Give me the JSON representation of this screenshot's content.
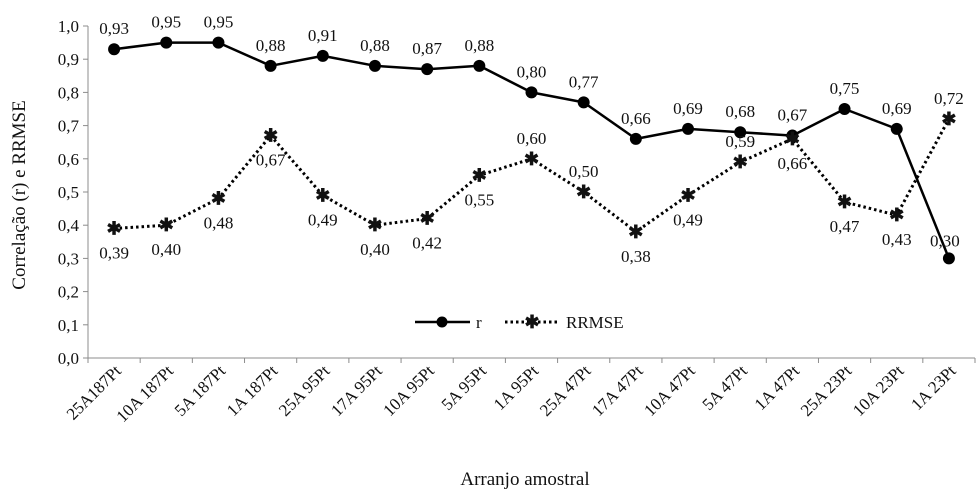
{
  "chart_data": {
    "type": "line",
    "xlabel": "Arranjo amostral",
    "ylabel": "Correlação (r) e RRMSE",
    "ylim": [
      0,
      1
    ],
    "ytick_labels": [
      "0,0",
      "0,1",
      "0,2",
      "0,3",
      "0,4",
      "0,5",
      "0,6",
      "0,7",
      "0,8",
      "0,9",
      "1,0"
    ],
    "categories": [
      "25A187Pt",
      "10A 187Pt",
      "5A 187Pt",
      "1A 187Pt",
      "25A 95Pt",
      "17A 95Pt",
      "10A 95Pt",
      "5A 95Pt",
      "1A 95Pt",
      "25A 47Pt",
      "17A 47Pt",
      "10A 47Pt",
      "5A 47Pt",
      "1A 47Pt",
      "25A 23Pt",
      "10A 23Pt",
      "1A 23Pt"
    ],
    "grid": false,
    "legend_position": "bottom-right",
    "series": [
      {
        "name": "r",
        "style": "solid",
        "marker": "circle",
        "color": "#000000",
        "values": [
          0.93,
          0.95,
          0.95,
          0.88,
          0.91,
          0.88,
          0.87,
          0.88,
          0.8,
          0.77,
          0.66,
          0.69,
          0.68,
          0.67,
          0.75,
          0.69,
          0.3
        ],
        "labels": [
          "0,93",
          "0,95",
          "0,95",
          "0,88",
          "0,91",
          "0,88",
          "0,87",
          "0,88",
          "0,80",
          "0,77",
          "0,66",
          "0,69",
          "0,68",
          "0,67",
          "0,75",
          "0,69",
          "0,30"
        ]
      },
      {
        "name": "RRMSE",
        "style": "dotted",
        "marker": "star",
        "color": "#000000",
        "values": [
          0.39,
          0.4,
          0.48,
          0.67,
          0.49,
          0.4,
          0.42,
          0.55,
          0.6,
          0.5,
          0.38,
          0.49,
          0.59,
          0.66,
          0.47,
          0.43,
          0.72
        ],
        "labels": [
          "0,39",
          "0,40",
          "0,48",
          "0,67",
          "0,49",
          "0,40",
          "0,42",
          "0,55",
          "0,60",
          "0,50",
          "0,38",
          "0,49",
          "0,59",
          "0,66",
          "0,47",
          "0,43",
          "0,72"
        ]
      }
    ]
  }
}
